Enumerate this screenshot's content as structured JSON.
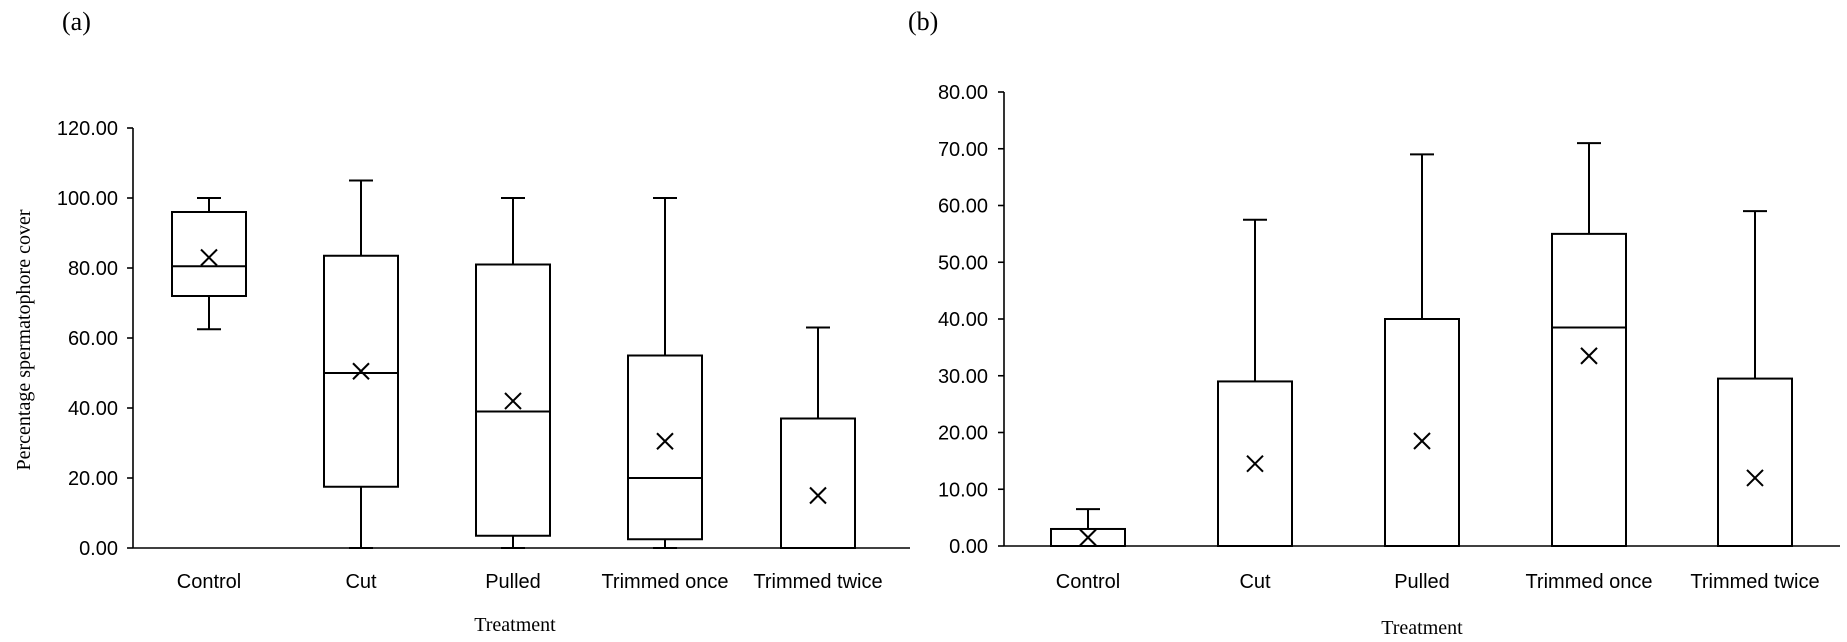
{
  "chart_data": [
    {
      "type": "box",
      "panel_label": "(a)",
      "title": "",
      "xlabel": "Treatment",
      "ylabel": "Percentage spermatophore cover",
      "ylim": [
        0,
        120
      ],
      "yticks": [
        "0.00",
        "20.00",
        "40.00",
        "60.00",
        "80.00",
        "100.00",
        "120.00"
      ],
      "categories": [
        "Control",
        "Cut",
        "Pulled",
        "Trimmed once",
        "Trimmed twice"
      ],
      "boxes": [
        {
          "min": 62.5,
          "q1": 72,
          "median": 80.5,
          "q3": 96,
          "max": 100,
          "mean": 83
        },
        {
          "min": 0,
          "q1": 17.5,
          "median": 50,
          "q3": 83.5,
          "max": 105,
          "mean": 50.5
        },
        {
          "min": 0,
          "q1": 3.5,
          "median": 39,
          "q3": 81,
          "max": 100,
          "mean": 42
        },
        {
          "min": 0,
          "q1": 2.5,
          "median": 20,
          "q3": 55,
          "max": 100,
          "mean": 30.5
        },
        {
          "min": 0,
          "q1": 0,
          "median": 0,
          "q3": 37,
          "max": 63,
          "mean": 15
        }
      ]
    },
    {
      "type": "box",
      "panel_label": "(b)",
      "title": "",
      "xlabel": "Treatment",
      "ylabel": "",
      "ylim": [
        0,
        80
      ],
      "yticks": [
        "0.00",
        "10.00",
        "20.00",
        "30.00",
        "40.00",
        "50.00",
        "60.00",
        "70.00",
        "80.00"
      ],
      "categories": [
        "Control",
        "Cut",
        "Pulled",
        "Trimmed once",
        "Trimmed twice"
      ],
      "boxes": [
        {
          "min": 0,
          "q1": 0,
          "median": 0,
          "q3": 3,
          "max": 6.5,
          "mean": 1.5
        },
        {
          "min": 0,
          "q1": 0,
          "median": 0,
          "q3": 29,
          "max": 57.5,
          "mean": 14.5
        },
        {
          "min": 0,
          "q1": 0,
          "median": 0,
          "q3": 40,
          "max": 69,
          "mean": 18.5
        },
        {
          "min": 0,
          "q1": 0,
          "median": 38.5,
          "q3": 55,
          "max": 71,
          "mean": 33.5
        },
        {
          "min": 0,
          "q1": 0,
          "median": 0,
          "q3": 29.5,
          "max": 59,
          "mean": 12
        }
      ]
    }
  ]
}
